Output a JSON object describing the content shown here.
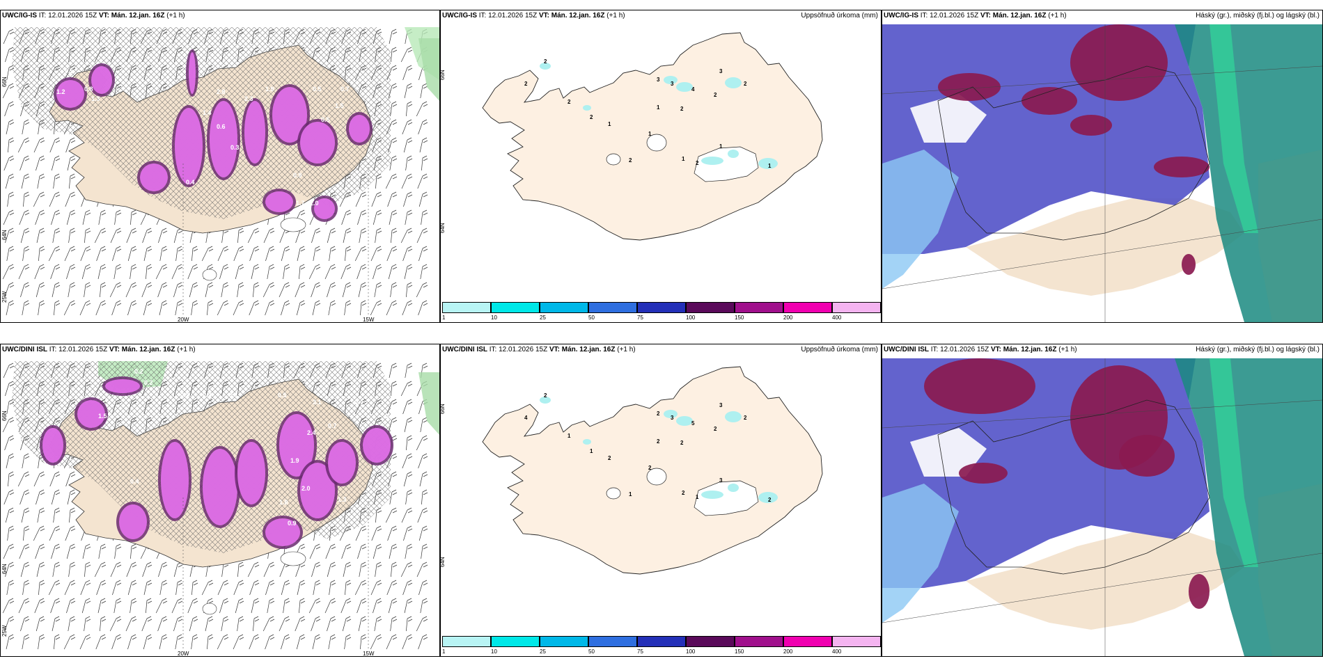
{
  "panels": [
    {
      "model": "UWC/IG-IS",
      "it_label": "IT:",
      "it_value": "12.01.2026 15Z",
      "vt_label": "VT:",
      "vt_value": "Mán. 12.jan. 16Z",
      "lead": "(+1 h)",
      "right_title": "",
      "type": "wind",
      "axis_bottom": [
        "20W",
        "15W"
      ],
      "axis_left": [
        "66N",
        "64N",
        "25W"
      ],
      "values": [
        "0.5",
        "1.2",
        "0.8",
        "1.3",
        "2.8",
        "1.9",
        "2.3",
        "0.5",
        "0.7",
        "1.5",
        "0.9",
        "2.0",
        "1.7",
        "0.3",
        "0.6",
        "1.4",
        "0.5",
        "0.4"
      ]
    },
    {
      "model": "UWC/IG-IS",
      "it_label": "IT:",
      "it_value": "12.01.2026 15Z",
      "vt_label": "VT:",
      "vt_value": "Mán. 12.jan. 16Z",
      "lead": "(+1 h)",
      "right_title": "Uppsöfnuð úrkoma (mm)",
      "type": "precip",
      "axis_left": [
        "66N",
        "64N"
      ],
      "values": [
        "2",
        "2",
        "3",
        "3",
        "4",
        "3",
        "2",
        "2",
        "2",
        "1",
        "2",
        "2",
        "1",
        "1",
        "1",
        "1",
        "2",
        "2",
        "1"
      ]
    },
    {
      "model": "UWC/IG-IS",
      "it_label": "IT:",
      "it_value": "12.01.2026 15Z",
      "vt_label": "VT:",
      "vt_value": "Mán. 12.jan. 16Z",
      "lead": "(+1 h)",
      "right_title": "Háský (gr.), miðský (fj.bl.) og lágský (bl.)",
      "type": "cloud"
    },
    {
      "model": "UWC/DINI ISL",
      "it_label": "IT:",
      "it_value": "12.01.2026 15Z",
      "vt_label": "VT:",
      "vt_value": "Mán. 12.jan. 16Z",
      "lead": "(+1 h)",
      "right_title": "",
      "type": "wind",
      "axis_bottom": [
        "20W",
        "15W"
      ],
      "axis_left": [
        "66N",
        "64N",
        "25W"
      ],
      "values": [
        "0.2",
        "0.2",
        "0.3",
        "0.3",
        "0.3",
        "0.5",
        "1.5",
        "3.1",
        "0.4",
        "2.4",
        "0.7",
        "1.9",
        "2.0",
        "1.3",
        "0.5",
        "1.8",
        "0.9",
        "0.4"
      ]
    },
    {
      "model": "UWC/DINI ISL",
      "it_label": "IT:",
      "it_value": "12.01.2026 15Z",
      "vt_label": "VT:",
      "vt_value": "Mán. 12.jan. 16Z",
      "lead": "(+1 h)",
      "right_title": "Uppsöfnuð úrkoma (mm)",
      "type": "precip",
      "axis_left": [
        "66N",
        "64N"
      ],
      "values": [
        "2",
        "4",
        "2",
        "3",
        "5",
        "3",
        "2",
        "2",
        "1",
        "2",
        "2",
        "1",
        "2",
        "2",
        "3",
        "2",
        "1",
        "1",
        "2"
      ]
    },
    {
      "model": "UWC/DINI ISL",
      "it_label": "IT:",
      "it_value": "12.01.2026 15Z",
      "vt_label": "VT:",
      "vt_value": "Mán. 12.jan. 16Z",
      "lead": "(+1 h)",
      "right_title": "Háský (gr.), miðský (fj.bl.) og lágský (bl.)",
      "type": "cloud"
    }
  ],
  "colorbar": {
    "labels": [
      "1",
      "10",
      "25",
      "50",
      "75",
      "100",
      "150",
      "200",
      "400"
    ],
    "colors": [
      "#b8f4f4",
      "#00e8e8",
      "#00b8e8",
      "#2f6fe0",
      "#2430b8",
      "#5a0a5a",
      "#a0108c",
      "#f000b0",
      "#f4b4f0"
    ]
  },
  "colors": {
    "land": "#f4e4d0",
    "land_precip": "#fdf0e2",
    "precip_light": "#aef0f0",
    "wind_purple": "#e070e8",
    "wind_dark": "#6a2a70",
    "cloud_low": "#5252c8",
    "cloud_mid": "#8a1a50",
    "cloud_high": "#1a8a80"
  }
}
